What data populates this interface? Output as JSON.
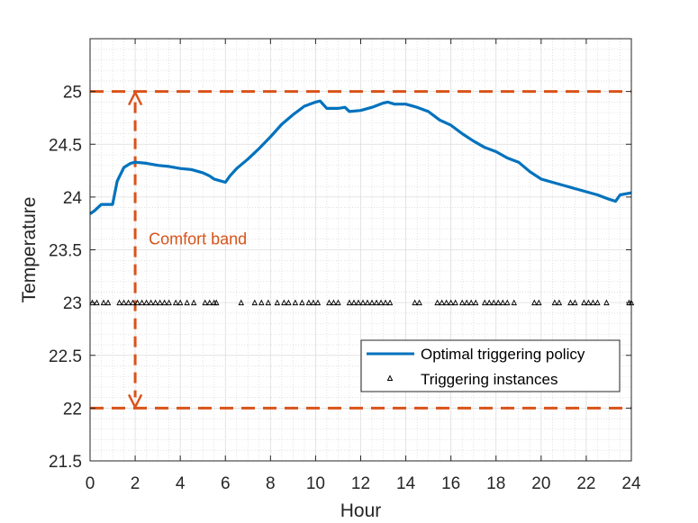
{
  "chart_data": {
    "type": "line",
    "xlabel": "Hour",
    "ylabel": "Temperature",
    "xlim": [
      0,
      24
    ],
    "ylim": [
      21.5,
      25.5
    ],
    "xticks": [
      0,
      2,
      4,
      6,
      8,
      10,
      12,
      14,
      16,
      18,
      20,
      22,
      24
    ],
    "yticks": [
      21.5,
      22,
      22.5,
      23,
      23.5,
      24,
      24.5,
      25
    ],
    "ytick_labels": [
      "21.5",
      "22",
      "22.5",
      "23",
      "23.5",
      "24",
      "24.5",
      "25"
    ],
    "grid": "major and minor (dotted)",
    "legend_position": "lower-right",
    "colors": {
      "policy": "#0072BD",
      "comfort": "#D95319",
      "trigger": "#000000"
    },
    "comfort_band": {
      "lower": 22,
      "upper": 25,
      "label": "Comfort band",
      "arrow_x": 2
    },
    "series": [
      {
        "name": "Optimal triggering policy",
        "x": [
          0,
          0.2,
          0.5,
          0.8,
          1.0,
          1.2,
          1.5,
          1.8,
          2.0,
          2.5,
          3.0,
          3.5,
          4.0,
          4.5,
          5.0,
          5.3,
          5.5,
          6.0,
          6.2,
          6.5,
          7.0,
          7.5,
          8.0,
          8.5,
          9.0,
          9.5,
          10.0,
          10.2,
          10.5,
          11.0,
          11.3,
          11.5,
          12.0,
          12.5,
          13.0,
          13.2,
          13.5,
          14.0,
          14.5,
          15.0,
          15.5,
          16.0,
          16.5,
          17.0,
          17.5,
          18.0,
          18.5,
          19.0,
          19.5,
          20.0,
          20.5,
          21.0,
          21.5,
          22.0,
          22.5,
          23.0,
          23.3,
          23.5,
          24.0
        ],
        "y": [
          23.84,
          23.87,
          23.93,
          23.93,
          23.93,
          24.15,
          24.28,
          24.32,
          24.33,
          24.32,
          24.3,
          24.29,
          24.27,
          24.26,
          24.23,
          24.2,
          24.17,
          24.14,
          24.2,
          24.27,
          24.36,
          24.46,
          24.57,
          24.69,
          24.78,
          24.86,
          24.9,
          24.91,
          24.84,
          24.84,
          24.85,
          24.81,
          24.82,
          24.85,
          24.89,
          24.9,
          24.88,
          24.88,
          24.85,
          24.81,
          24.73,
          24.68,
          24.6,
          24.53,
          24.47,
          24.43,
          24.37,
          24.33,
          24.24,
          24.17,
          24.14,
          24.11,
          24.08,
          24.05,
          24.02,
          23.98,
          23.96,
          24.02,
          24.04
        ]
      },
      {
        "name": "Triggering instances",
        "x": [
          0.1,
          0.3,
          0.6,
          0.8,
          1.3,
          1.5,
          1.7,
          1.9,
          2.1,
          2.3,
          2.5,
          2.7,
          2.9,
          3.1,
          3.3,
          3.5,
          3.8,
          4.0,
          4.3,
          4.6,
          5.1,
          5.3,
          5.5,
          5.6,
          6.7,
          7.3,
          7.6,
          7.9,
          8.3,
          8.6,
          8.8,
          9.1,
          9.4,
          9.7,
          9.9,
          10.1,
          10.6,
          10.8,
          11.0,
          11.5,
          11.7,
          11.9,
          12.1,
          12.3,
          12.5,
          12.7,
          12.9,
          13.1,
          13.3,
          14.4,
          14.6,
          15.4,
          15.6,
          15.8,
          16.0,
          16.2,
          16.5,
          16.7,
          16.9,
          17.1,
          17.5,
          17.7,
          17.9,
          18.1,
          18.3,
          18.5,
          18.8,
          19.7,
          19.9,
          20.6,
          20.8,
          21.3,
          21.5,
          21.9,
          22.1,
          22.3,
          22.5,
          22.9,
          23.9,
          24.0
        ],
        "y_value": 23
      }
    ]
  }
}
